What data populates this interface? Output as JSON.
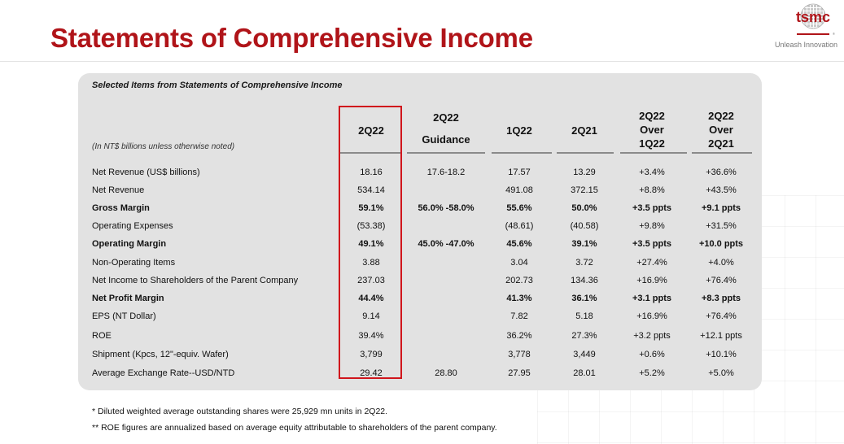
{
  "header": {
    "title": "Statements of Comprehensive Income",
    "logo_text": "tsmc",
    "tagline": "Unleash Innovation",
    "brand_color": "#b01419"
  },
  "panel": {
    "title": "Selected Items from Statements of Comprehensive Income",
    "units_note": "(In NT$ billions unless otherwise noted)",
    "highlight_color": "#d0161c"
  },
  "columns": [
    {
      "lines": [
        "2Q22"
      ]
    },
    {
      "lines": [
        "2Q22",
        "Guidance"
      ]
    },
    {
      "lines": [
        "1Q22"
      ]
    },
    {
      "lines": [
        "2Q21"
      ]
    },
    {
      "lines": [
        "2Q22",
        "Over",
        "1Q22"
      ]
    },
    {
      "lines": [
        "2Q22",
        "Over",
        "2Q21"
      ]
    }
  ],
  "rows": [
    {
      "label": "Net Revenue (US$ billions)",
      "bold": false,
      "values": [
        "18.16",
        "17.6-18.2",
        "17.57",
        "13.29",
        "+3.4%",
        "+36.6%"
      ]
    },
    {
      "label": "Net Revenue",
      "bold": false,
      "values": [
        "534.14",
        "",
        "491.08",
        "372.15",
        "+8.8%",
        "+43.5%"
      ]
    },
    {
      "label": "Gross Margin",
      "bold": true,
      "values": [
        "59.1%",
        "56.0% -58.0%",
        "55.6%",
        "50.0%",
        "+3.5 ppts",
        "+9.1 ppts"
      ]
    },
    {
      "label": "Operating Expenses",
      "bold": false,
      "values": [
        "(53.38)",
        "",
        "(48.61)",
        "(40.58)",
        "+9.8%",
        "+31.5%"
      ]
    },
    {
      "label": "Operating Margin",
      "bold": true,
      "values": [
        "49.1%",
        "45.0% -47.0%",
        "45.6%",
        "39.1%",
        "+3.5 ppts",
        "+10.0 ppts"
      ]
    },
    {
      "label": "Non-Operating Items",
      "bold": false,
      "values": [
        "3.88",
        "",
        "3.04",
        "3.72",
        "+27.4%",
        "+4.0%"
      ]
    },
    {
      "label": "Net Income to Shareholders of the Parent Company",
      "bold": false,
      "values": [
        "237.03",
        "",
        "202.73",
        "134.36",
        "+16.9%",
        "+76.4%"
      ]
    },
    {
      "label": "Net Profit Margin",
      "bold": true,
      "values": [
        "44.4%",
        "",
        "41.3%",
        "36.1%",
        "+3.1 ppts",
        "+8.3 ppts"
      ]
    },
    {
      "label": "EPS (NT Dollar)",
      "bold": false,
      "values": [
        "9.14",
        "",
        "7.82",
        "5.18",
        "+16.9%",
        "+76.4%"
      ]
    },
    {
      "label": "ROE",
      "bold": false,
      "values": [
        "39.4%",
        "",
        "36.2%",
        "27.3%",
        "+3.2 ppts",
        "+12.1 ppts"
      ]
    },
    {
      "label": "Shipment (Kpcs, 12\"-equiv. Wafer)",
      "bold": false,
      "values": [
        "3,799",
        "",
        "3,778",
        "3,449",
        "+0.6%",
        "+10.1%"
      ]
    },
    {
      "label": "Average Exchange Rate--USD/NTD",
      "bold": false,
      "values": [
        "29.42",
        "28.80",
        "27.95",
        "28.01",
        "+5.2%",
        "+5.0%"
      ]
    }
  ],
  "footnotes": [
    "*    Diluted weighted average outstanding shares were 25,929 mn units in 2Q22.",
    "**  ROE figures are annualized based on average equity attributable to shareholders of the parent company."
  ]
}
